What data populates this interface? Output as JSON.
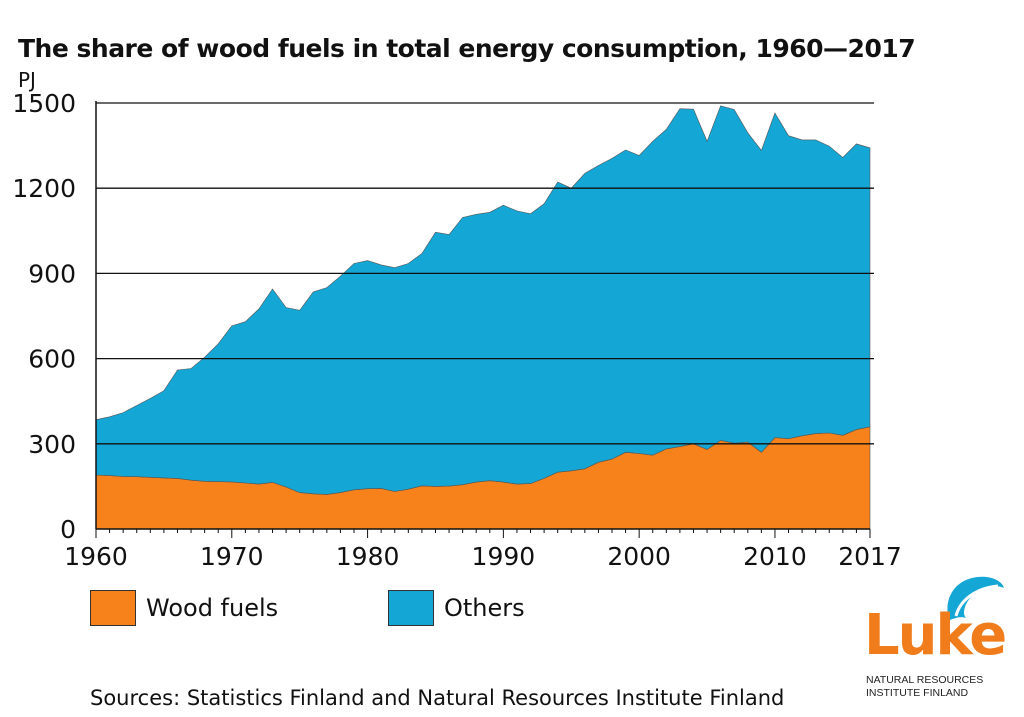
{
  "chart_data": {
    "type": "area",
    "stacked": true,
    "title": "The share of wood fuels in total energy consumption, 1960—2017",
    "unit": "PJ",
    "ylim": [
      0,
      1500
    ],
    "yticks": [
      0,
      300,
      600,
      900,
      1200,
      1500
    ],
    "xticks": [
      1960,
      1970,
      1980,
      1990,
      2000,
      2010,
      2017
    ],
    "xlim": [
      1960,
      2017
    ],
    "grid": "horizontal",
    "legend": "bottom",
    "x": [
      1960,
      1961,
      1962,
      1963,
      1964,
      1965,
      1966,
      1967,
      1968,
      1969,
      1970,
      1971,
      1972,
      1973,
      1974,
      1975,
      1976,
      1977,
      1978,
      1979,
      1980,
      1981,
      1982,
      1983,
      1984,
      1985,
      1986,
      1987,
      1988,
      1989,
      1990,
      1991,
      1992,
      1993,
      1994,
      1995,
      1996,
      1997,
      1998,
      1999,
      2000,
      2001,
      2002,
      2003,
      2004,
      2005,
      2006,
      2007,
      2008,
      2009,
      2010,
      2011,
      2012,
      2013,
      2014,
      2015,
      2016,
      2017
    ],
    "series": [
      {
        "name": "Wood fuels",
        "color": "#f7821b",
        "values": [
          190,
          188,
          185,
          184,
          182,
          180,
          178,
          172,
          168,
          167,
          166,
          162,
          158,
          164,
          148,
          128,
          124,
          122,
          128,
          138,
          142,
          143,
          132,
          140,
          152,
          150,
          151,
          156,
          165,
          170,
          165,
          158,
          160,
          178,
          200,
          205,
          212,
          235,
          246,
          270,
          266,
          260,
          282,
          290,
          300,
          280,
          312,
          302,
          306,
          270,
          322,
          318,
          328,
          336,
          338,
          330,
          350,
          360
        ]
      },
      {
        "name": "Others",
        "color": "#14a6d4",
        "values": [
          195,
          207,
          225,
          251,
          278,
          307,
          382,
          393,
          437,
          485,
          549,
          568,
          617,
          681,
          632,
          642,
          711,
          728,
          762,
          797,
          803,
          787,
          788,
          795,
          818,
          895,
          886,
          941,
          943,
          945,
          975,
          962,
          950,
          967,
          1022,
          995,
          1040,
          1045,
          1059,
          1065,
          1049,
          1105,
          1125,
          1190,
          1178,
          1085,
          1178,
          1175,
          1089,
          1063,
          1143,
          1067,
          1042,
          1034,
          1010,
          978,
          1006,
          982
        ]
      }
    ]
  },
  "source": "Sources: Statistics Finland and Natural Resources Institute Finland",
  "logo": {
    "word": "Luke",
    "line1": "NATURAL RESOURCES",
    "line2": "INSTITUTE FINLAND",
    "color": "#f07c1b",
    "icon_color": "#14a6d4"
  }
}
